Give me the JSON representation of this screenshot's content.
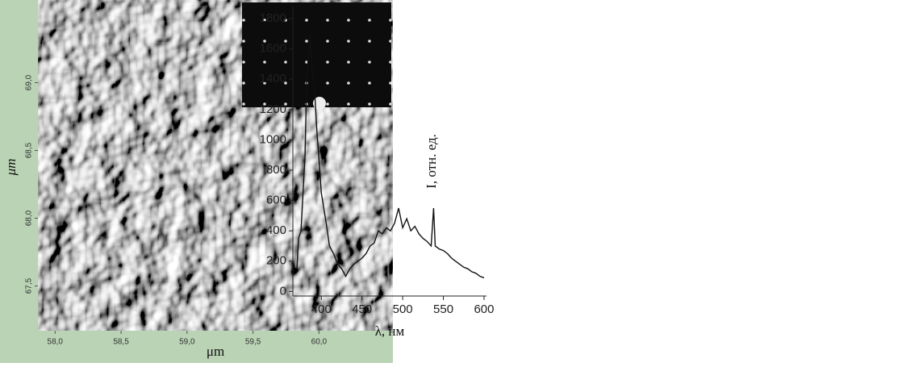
{
  "chart_data": [
    {
      "type": "image",
      "xlabel": "μm",
      "ylabel": "μm",
      "xlim": [
        57.87,
        60.56
      ],
      "ylim": [
        67.17,
        69.61
      ],
      "xticks": [
        {
          "value": 58.0,
          "label": "58,0"
        },
        {
          "value": 58.5,
          "label": "58,5"
        },
        {
          "value": 59.0,
          "label": "59,0"
        },
        {
          "value": 59.5,
          "label": "59,5"
        },
        {
          "value": 60.0,
          "label": "60,0"
        }
      ],
      "yticks": [
        {
          "value": 67.5,
          "label": "67,5"
        },
        {
          "value": 68.0,
          "label": "68,0"
        },
        {
          "value": 68.5,
          "label": "68,5"
        },
        {
          "value": 69.0,
          "label": "69,0"
        }
      ]
    },
    {
      "type": "line",
      "xlabel": "λ, нм",
      "ylabel": "I, отн. ед.",
      "color": "#111111",
      "xlim": [
        365,
        603
      ],
      "ylim": [
        -30,
        1880
      ],
      "xticks": [
        400,
        450,
        500,
        550,
        600
      ],
      "yticks": [
        0,
        200,
        400,
        600,
        800,
        1000,
        1200,
        1400,
        1600,
        1800
      ],
      "x": [
        370,
        372,
        375,
        378,
        380,
        382,
        384,
        386,
        388,
        390,
        392,
        394,
        396,
        398,
        400,
        403,
        406,
        410,
        415,
        420,
        425,
        430,
        435,
        440,
        445,
        450,
        455,
        460,
        465,
        470,
        475,
        480,
        485,
        490,
        495,
        500,
        505,
        510,
        515,
        520,
        525,
        530,
        535,
        538,
        540,
        545,
        550,
        555,
        560,
        565,
        570,
        575,
        580,
        585,
        590,
        595,
        600
      ],
      "values": [
        150,
        350,
        400,
        700,
        900,
        1400,
        1550,
        1700,
        1500,
        1400,
        1300,
        1100,
        950,
        800,
        650,
        550,
        450,
        300,
        250,
        180,
        150,
        100,
        150,
        180,
        200,
        220,
        250,
        300,
        320,
        400,
        380,
        420,
        400,
        450,
        550,
        420,
        480,
        400,
        430,
        380,
        350,
        330,
        300,
        550,
        300,
        280,
        270,
        250,
        220,
        200,
        180,
        160,
        150,
        130,
        120,
        100,
        90
      ]
    }
  ]
}
